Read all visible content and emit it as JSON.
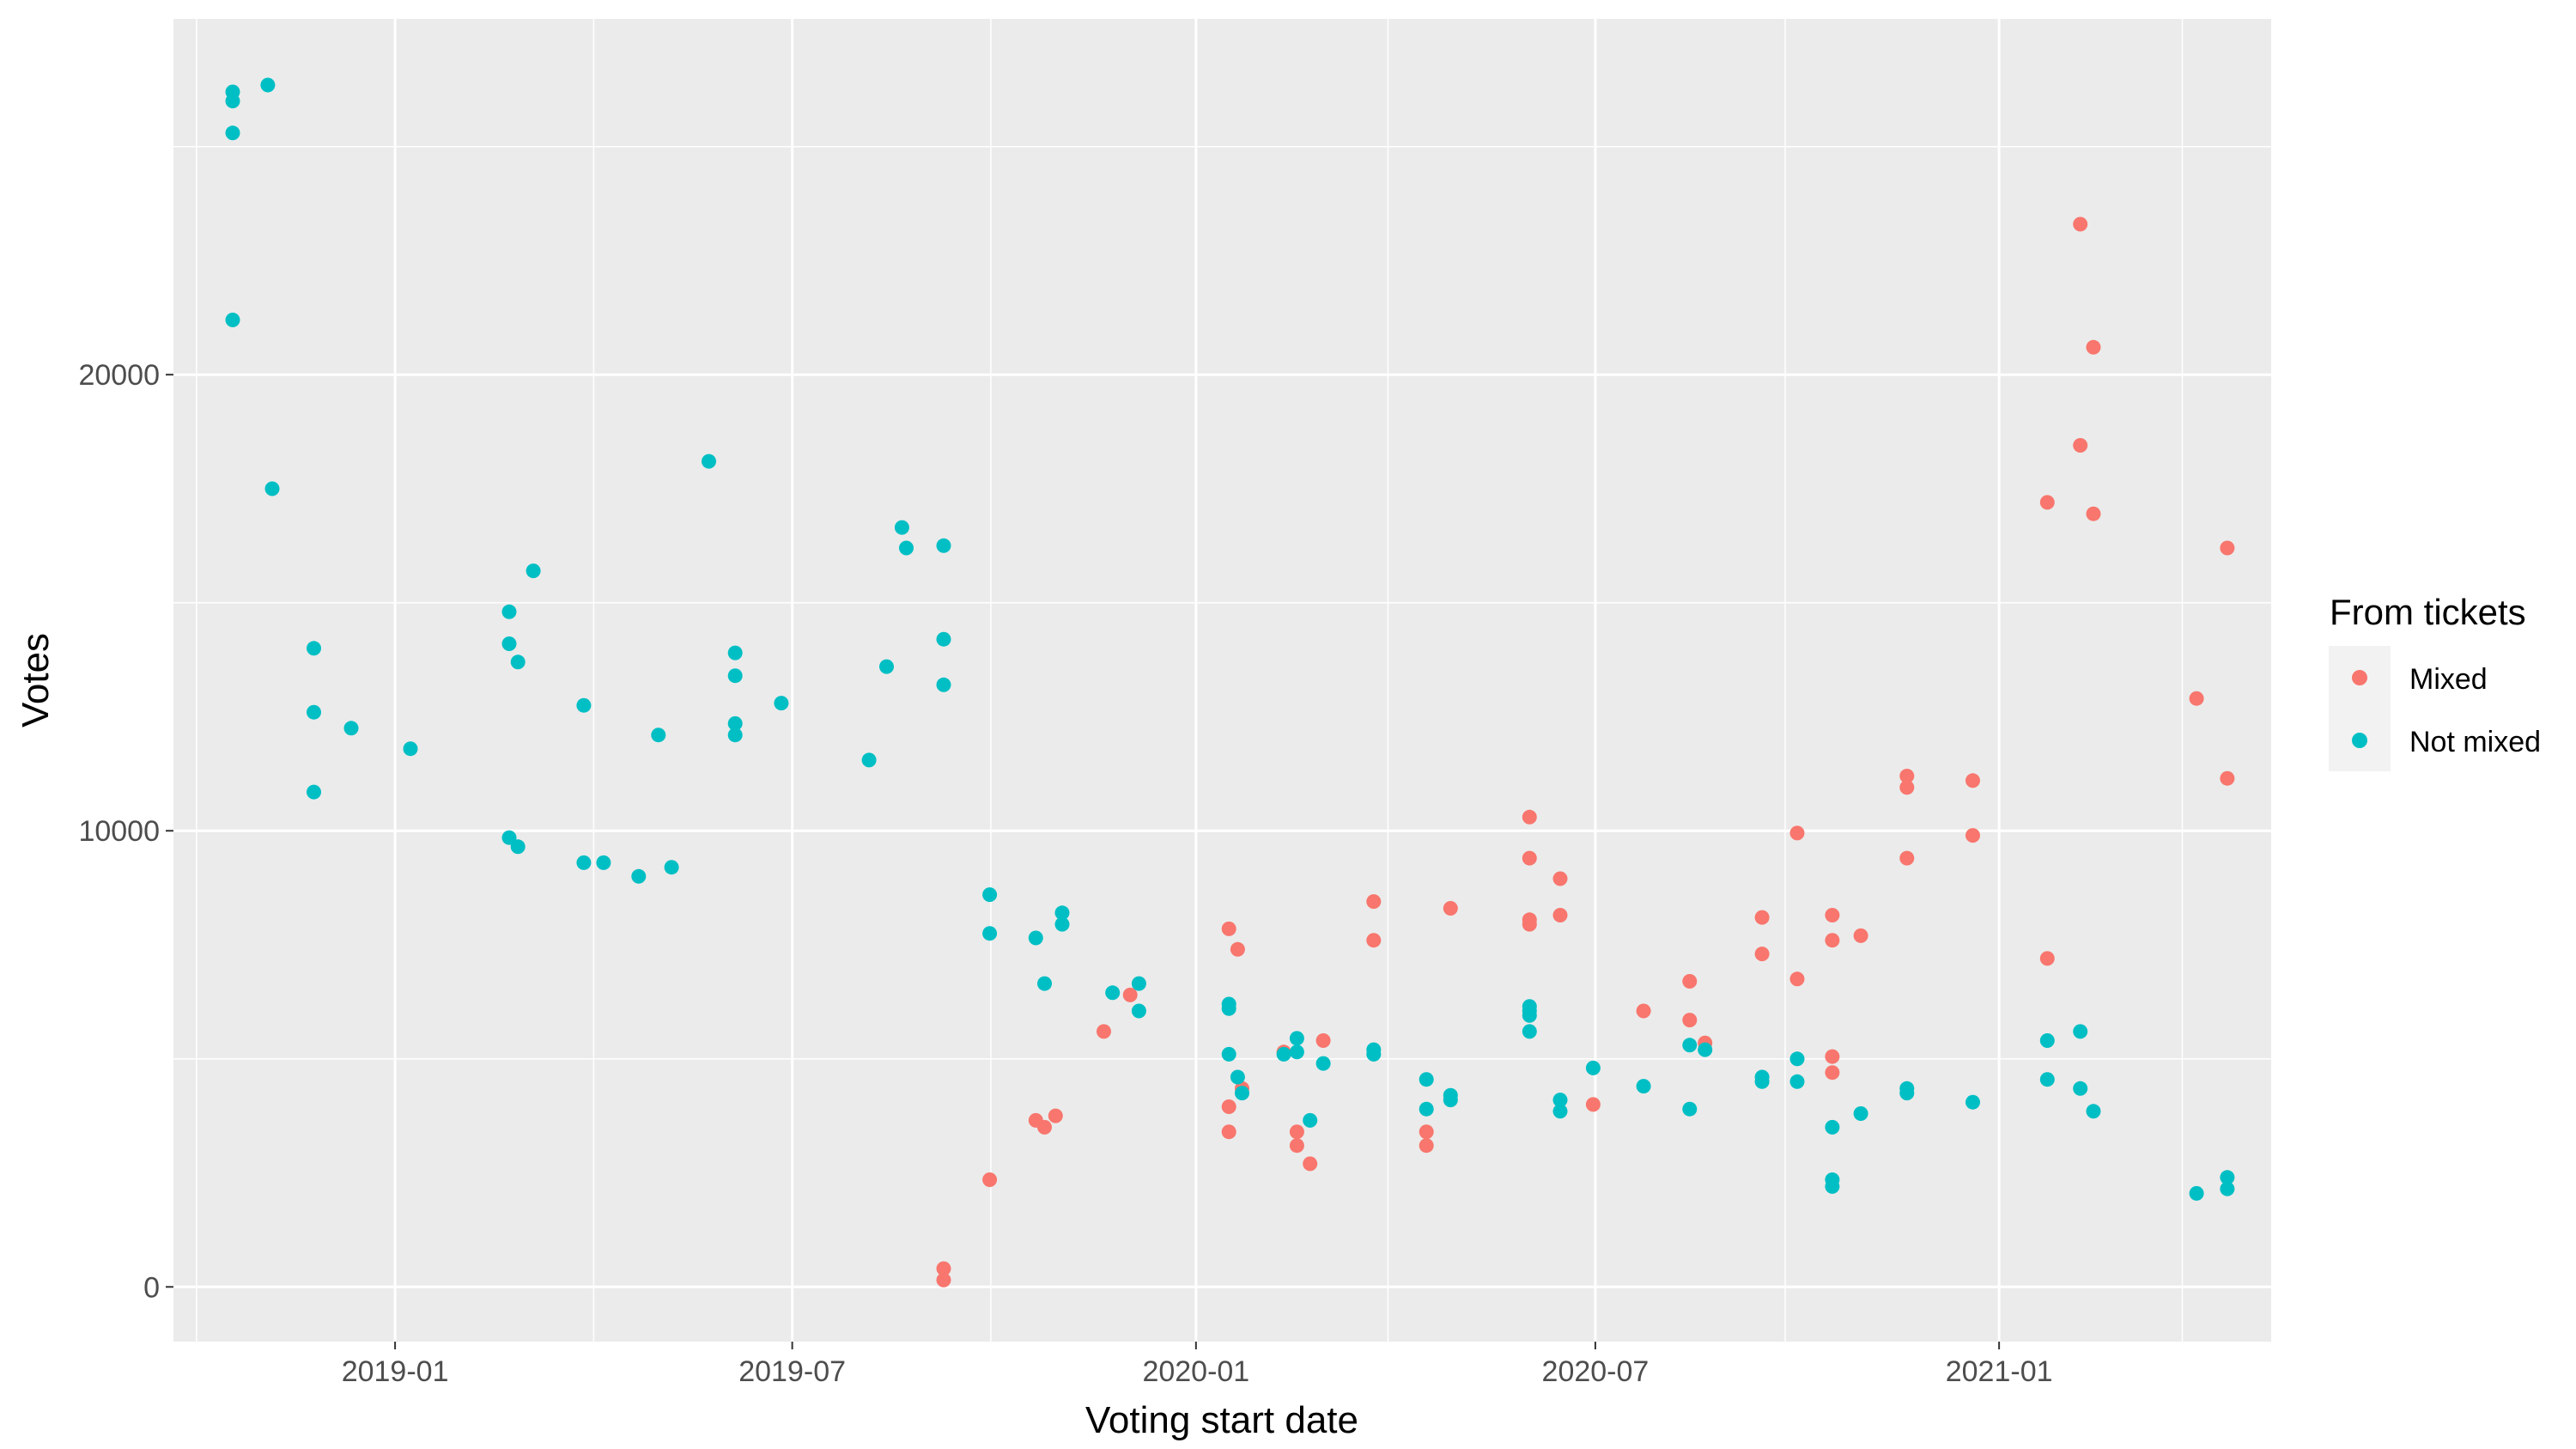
{
  "chart_data": {
    "type": "scatter",
    "title": "",
    "xlabel": "Voting start date",
    "ylabel": "Votes",
    "x_ticks": [
      "2019-01",
      "2019-07",
      "2020-01",
      "2020-07",
      "2021-01"
    ],
    "y_ticks": [
      "0",
      "10000",
      "20000"
    ],
    "xlim": [
      "2018-09-22",
      "2021-05-05"
    ],
    "ylim": [
      -1200,
      27800
    ],
    "grid": true,
    "legend": {
      "title": "From tickets",
      "position": "right"
    },
    "colors": {
      "Mixed": "#f8766d",
      "Not mixed": "#00bfc4",
      "panel": "#ebebeb",
      "grid": "#ffffff"
    },
    "series": [
      {
        "name": "Mixed",
        "points": [
          {
            "x": "2019-09-08",
            "y": 400
          },
          {
            "x": "2019-09-08",
            "y": 150
          },
          {
            "x": "2019-09-29",
            "y": 2350
          },
          {
            "x": "2019-10-20",
            "y": 3650
          },
          {
            "x": "2019-10-24",
            "y": 3500
          },
          {
            "x": "2019-10-29",
            "y": 3750
          },
          {
            "x": "2019-11-20",
            "y": 5600
          },
          {
            "x": "2019-12-02",
            "y": 6400
          },
          {
            "x": "2020-01-16",
            "y": 7850
          },
          {
            "x": "2020-01-16",
            "y": 3950
          },
          {
            "x": "2020-01-16",
            "y": 3400
          },
          {
            "x": "2020-01-20",
            "y": 7400
          },
          {
            "x": "2020-01-22",
            "y": 4350
          },
          {
            "x": "2020-02-10",
            "y": 5150
          },
          {
            "x": "2020-02-16",
            "y": 3400
          },
          {
            "x": "2020-02-16",
            "y": 3100
          },
          {
            "x": "2020-02-22",
            "y": 2700
          },
          {
            "x": "2020-02-28",
            "y": 5400
          },
          {
            "x": "2020-03-22",
            "y": 8450
          },
          {
            "x": "2020-03-22",
            "y": 7600
          },
          {
            "x": "2020-04-15",
            "y": 3400
          },
          {
            "x": "2020-04-15",
            "y": 3100
          },
          {
            "x": "2020-04-26",
            "y": 8300
          },
          {
            "x": "2020-06-01",
            "y": 10300
          },
          {
            "x": "2020-06-01",
            "y": 9400
          },
          {
            "x": "2020-06-01",
            "y": 8050
          },
          {
            "x": "2020-06-01",
            "y": 7950
          },
          {
            "x": "2020-06-15",
            "y": 8950
          },
          {
            "x": "2020-06-15",
            "y": 8150
          },
          {
            "x": "2020-06-30",
            "y": 4000
          },
          {
            "x": "2020-07-23",
            "y": 6050
          },
          {
            "x": "2020-08-13",
            "y": 6700
          },
          {
            "x": "2020-08-13",
            "y": 5850
          },
          {
            "x": "2020-08-20",
            "y": 5350
          },
          {
            "x": "2020-09-15",
            "y": 8100
          },
          {
            "x": "2020-09-15",
            "y": 7300
          },
          {
            "x": "2020-10-01",
            "y": 9950
          },
          {
            "x": "2020-10-01",
            "y": 6750
          },
          {
            "x": "2020-10-17",
            "y": 8150
          },
          {
            "x": "2020-10-17",
            "y": 7600
          },
          {
            "x": "2020-10-17",
            "y": 5050
          },
          {
            "x": "2020-10-17",
            "y": 4700
          },
          {
            "x": "2020-10-30",
            "y": 7700
          },
          {
            "x": "2020-11-20",
            "y": 11200
          },
          {
            "x": "2020-11-20",
            "y": 10950
          },
          {
            "x": "2020-11-20",
            "y": 9400
          },
          {
            "x": "2020-12-20",
            "y": 11100
          },
          {
            "x": "2020-12-20",
            "y": 9900
          },
          {
            "x": "2021-01-23",
            "y": 17200
          },
          {
            "x": "2021-01-23",
            "y": 7200
          },
          {
            "x": "2021-02-07",
            "y": 23300
          },
          {
            "x": "2021-02-07",
            "y": 18450
          },
          {
            "x": "2021-02-13",
            "y": 20600
          },
          {
            "x": "2021-02-13",
            "y": 16950
          },
          {
            "x": "2021-04-01",
            "y": 12900
          },
          {
            "x": "2021-04-15",
            "y": 16200
          },
          {
            "x": "2021-04-15",
            "y": 11150
          }
        ]
      },
      {
        "name": "Not mixed",
        "points": [
          {
            "x": "2018-10-19",
            "y": 26200
          },
          {
            "x": "2018-10-19",
            "y": 26000
          },
          {
            "x": "2018-10-19",
            "y": 25300
          },
          {
            "x": "2018-10-19",
            "y": 21200
          },
          {
            "x": "2018-11-04",
            "y": 26350
          },
          {
            "x": "2018-11-06",
            "y": 17500
          },
          {
            "x": "2018-11-25",
            "y": 14000
          },
          {
            "x": "2018-11-25",
            "y": 12600
          },
          {
            "x": "2018-11-25",
            "y": 10850
          },
          {
            "x": "2018-12-12",
            "y": 12250
          },
          {
            "x": "2019-01-08",
            "y": 11800
          },
          {
            "x": "2019-02-22",
            "y": 14800
          },
          {
            "x": "2019-02-22",
            "y": 14100
          },
          {
            "x": "2019-02-22",
            "y": 9850
          },
          {
            "x": "2019-02-26",
            "y": 13700
          },
          {
            "x": "2019-02-26",
            "y": 9650
          },
          {
            "x": "2019-03-05",
            "y": 15700
          },
          {
            "x": "2019-03-28",
            "y": 12750
          },
          {
            "x": "2019-03-28",
            "y": 9300
          },
          {
            "x": "2019-04-06",
            "y": 9300
          },
          {
            "x": "2019-04-22",
            "y": 9000
          },
          {
            "x": "2019-05-01",
            "y": 12100
          },
          {
            "x": "2019-05-07",
            "y": 9200
          },
          {
            "x": "2019-05-24",
            "y": 18100
          },
          {
            "x": "2019-06-05",
            "y": 13900
          },
          {
            "x": "2019-06-05",
            "y": 13400
          },
          {
            "x": "2019-06-05",
            "y": 12350
          },
          {
            "x": "2019-06-05",
            "y": 12100
          },
          {
            "x": "2019-06-26",
            "y": 12800
          },
          {
            "x": "2019-08-05",
            "y": 11550
          },
          {
            "x": "2019-08-13",
            "y": 13600
          },
          {
            "x": "2019-08-20",
            "y": 16650
          },
          {
            "x": "2019-08-22",
            "y": 16200
          },
          {
            "x": "2019-09-08",
            "y": 16250
          },
          {
            "x": "2019-09-08",
            "y": 14200
          },
          {
            "x": "2019-09-08",
            "y": 13200
          },
          {
            "x": "2019-09-29",
            "y": 8600
          },
          {
            "x": "2019-09-29",
            "y": 7750
          },
          {
            "x": "2019-10-20",
            "y": 7650
          },
          {
            "x": "2019-10-24",
            "y": 6650
          },
          {
            "x": "2019-11-01",
            "y": 8200
          },
          {
            "x": "2019-11-01",
            "y": 7950
          },
          {
            "x": "2019-11-24",
            "y": 6450
          },
          {
            "x": "2019-12-06",
            "y": 6650
          },
          {
            "x": "2019-12-06",
            "y": 6050
          },
          {
            "x": "2020-01-16",
            "y": 6200
          },
          {
            "x": "2020-01-16",
            "y": 6100
          },
          {
            "x": "2020-01-16",
            "y": 5100
          },
          {
            "x": "2020-01-20",
            "y": 4600
          },
          {
            "x": "2020-01-22",
            "y": 4250
          },
          {
            "x": "2020-02-10",
            "y": 5100
          },
          {
            "x": "2020-02-16",
            "y": 5450
          },
          {
            "x": "2020-02-16",
            "y": 5150
          },
          {
            "x": "2020-02-22",
            "y": 3650
          },
          {
            "x": "2020-02-28",
            "y": 4900
          },
          {
            "x": "2020-03-22",
            "y": 5200
          },
          {
            "x": "2020-03-22",
            "y": 5100
          },
          {
            "x": "2020-04-15",
            "y": 4550
          },
          {
            "x": "2020-04-15",
            "y": 3900
          },
          {
            "x": "2020-04-26",
            "y": 4200
          },
          {
            "x": "2020-04-26",
            "y": 4100
          },
          {
            "x": "2020-06-01",
            "y": 6150
          },
          {
            "x": "2020-06-01",
            "y": 6050
          },
          {
            "x": "2020-06-01",
            "y": 5950
          },
          {
            "x": "2020-06-01",
            "y": 5600
          },
          {
            "x": "2020-06-15",
            "y": 4100
          },
          {
            "x": "2020-06-15",
            "y": 3850
          },
          {
            "x": "2020-06-30",
            "y": 4800
          },
          {
            "x": "2020-07-23",
            "y": 4400
          },
          {
            "x": "2020-08-13",
            "y": 5300
          },
          {
            "x": "2020-08-13",
            "y": 3900
          },
          {
            "x": "2020-08-20",
            "y": 5200
          },
          {
            "x": "2020-09-15",
            "y": 4600
          },
          {
            "x": "2020-09-15",
            "y": 4500
          },
          {
            "x": "2020-10-01",
            "y": 5000
          },
          {
            "x": "2020-10-01",
            "y": 4500
          },
          {
            "x": "2020-10-17",
            "y": 3500
          },
          {
            "x": "2020-10-17",
            "y": 2350
          },
          {
            "x": "2020-10-17",
            "y": 2200
          },
          {
            "x": "2020-10-30",
            "y": 3800
          },
          {
            "x": "2020-11-20",
            "y": 4350
          },
          {
            "x": "2020-11-20",
            "y": 4250
          },
          {
            "x": "2020-12-20",
            "y": 4050
          },
          {
            "x": "2021-01-23",
            "y": 5400
          },
          {
            "x": "2021-01-23",
            "y": 4550
          },
          {
            "x": "2021-02-07",
            "y": 5600
          },
          {
            "x": "2021-02-07",
            "y": 4350
          },
          {
            "x": "2021-02-13",
            "y": 3850
          },
          {
            "x": "2021-04-01",
            "y": 2050
          },
          {
            "x": "2021-04-15",
            "y": 2400
          },
          {
            "x": "2021-04-15",
            "y": 2150
          }
        ]
      }
    ]
  }
}
